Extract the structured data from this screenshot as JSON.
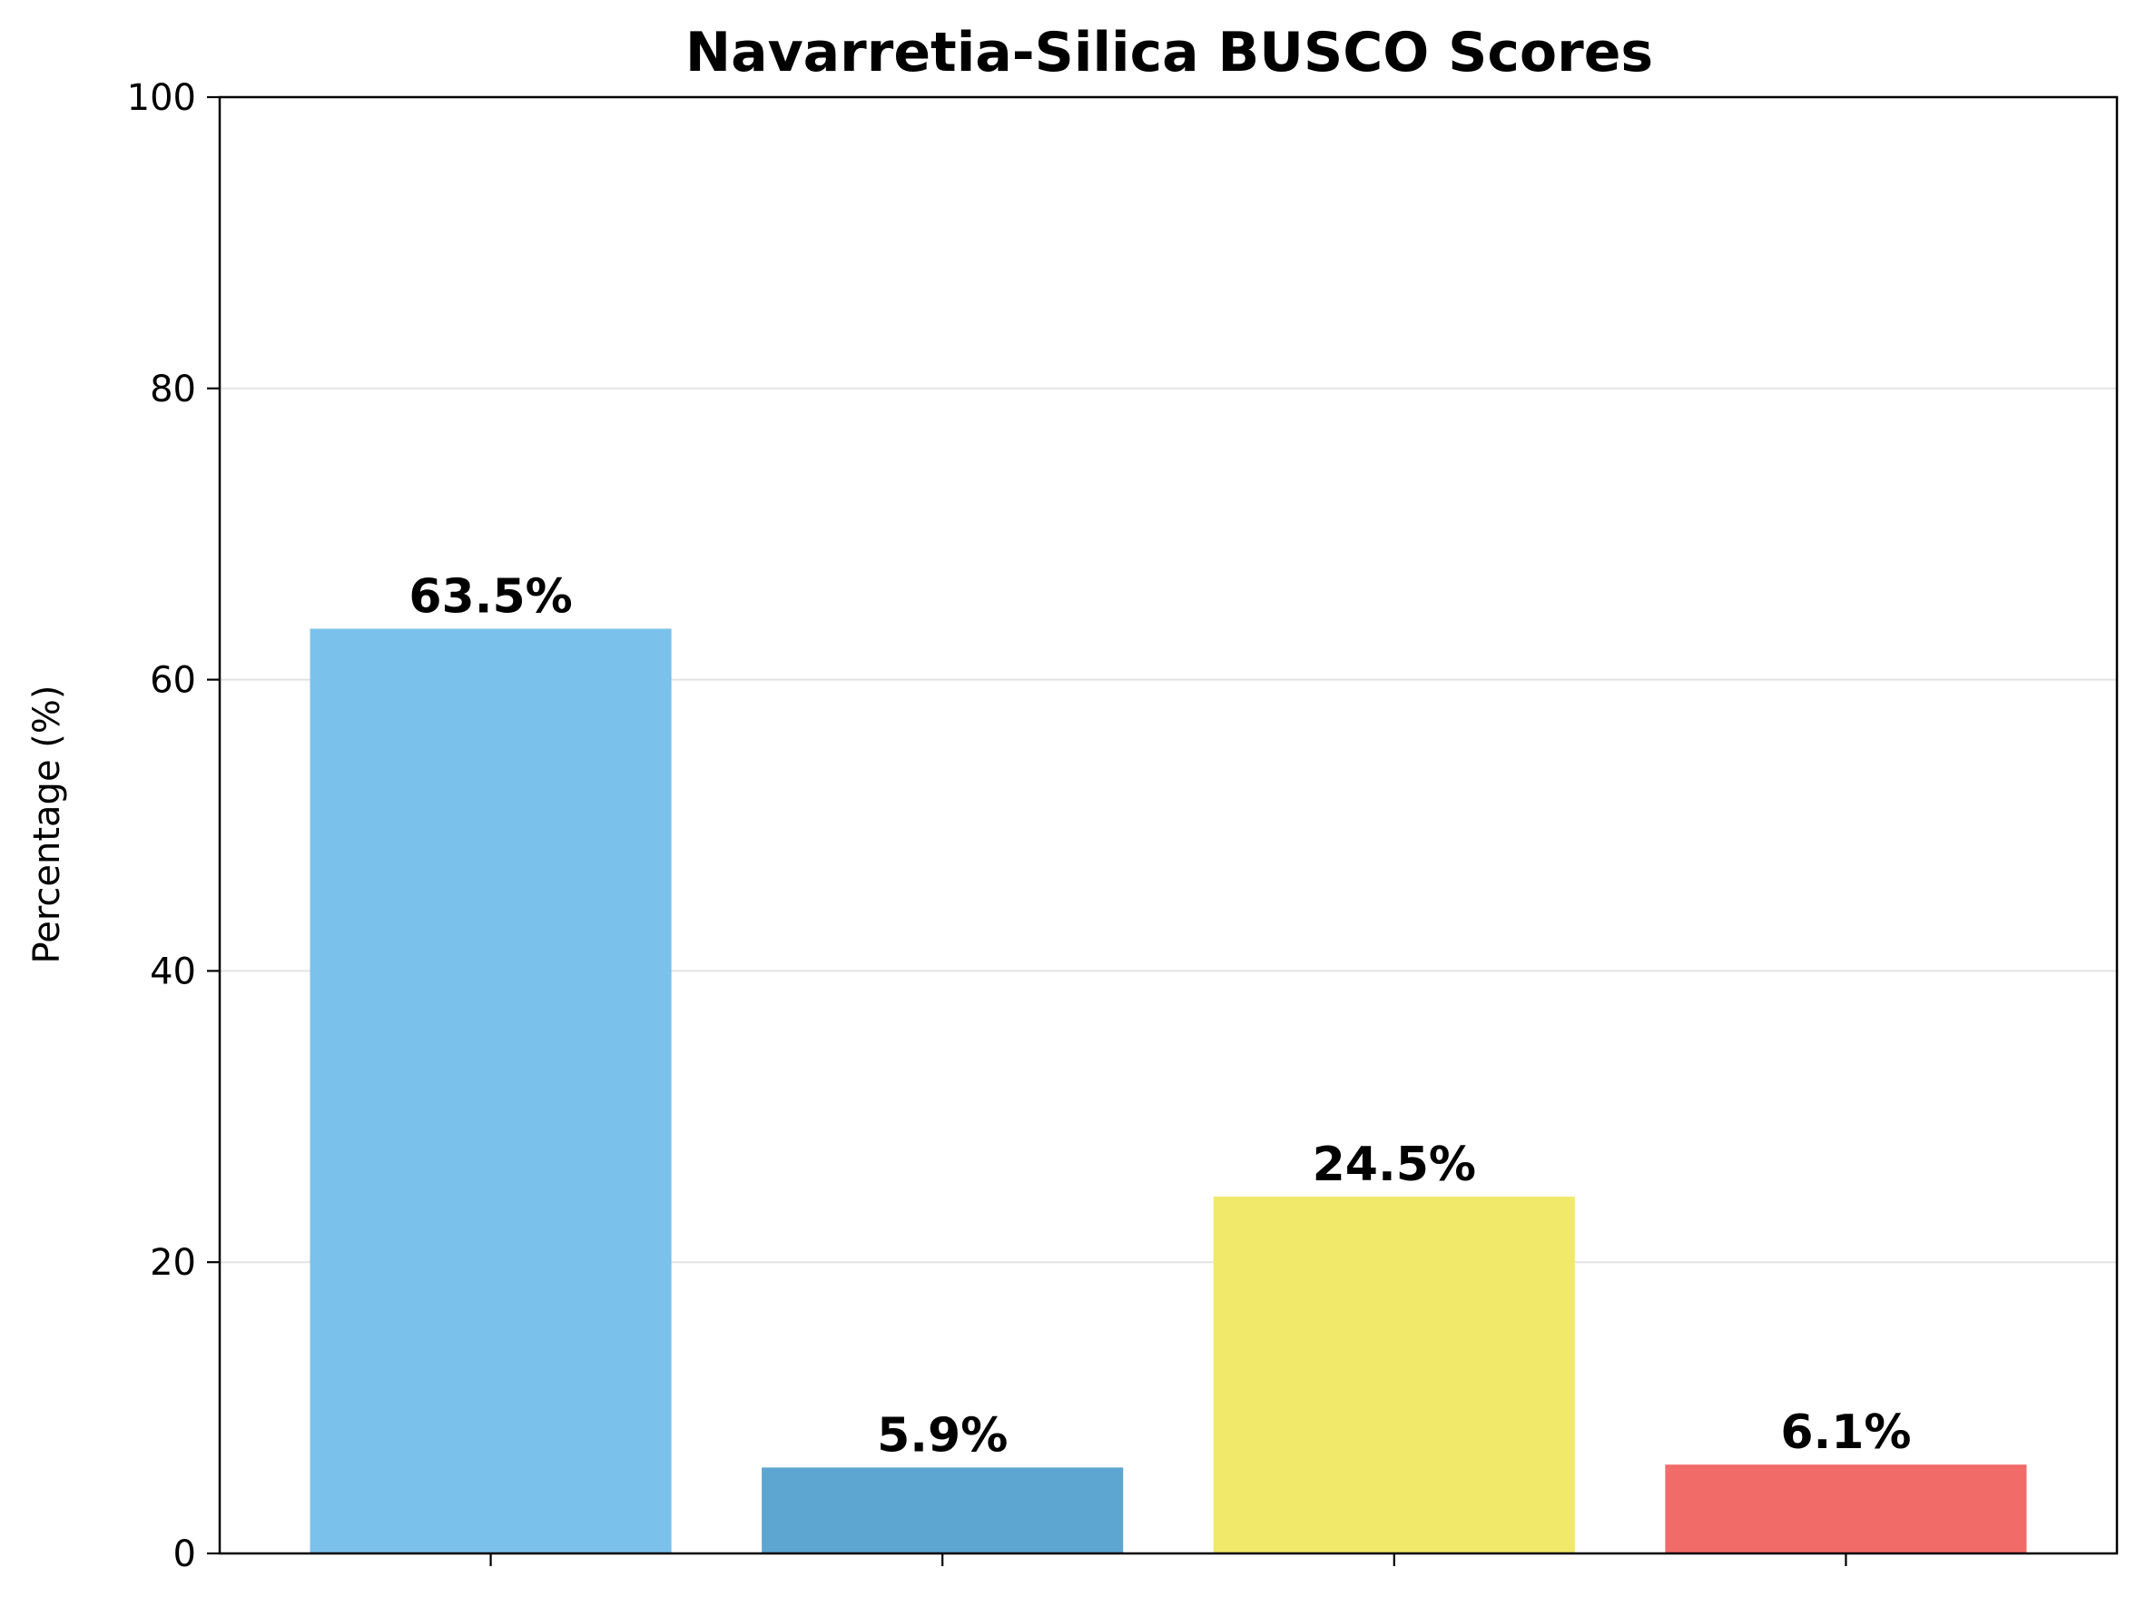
{
  "chart_data": {
    "type": "bar",
    "title": "Navarretia-Silica BUSCO Scores",
    "xlabel": "",
    "ylabel": "Percentage (%)",
    "categories": [
      "",
      "",
      "",
      ""
    ],
    "values": [
      63.5,
      5.9,
      24.5,
      6.1
    ],
    "value_labels": [
      "63.5%",
      "5.9%",
      "24.5%",
      "6.1%"
    ],
    "colors": [
      "#7ac1eb",
      "#5ca6d1",
      "#f1e96a",
      "#f16b69"
    ],
    "ylim": [
      0,
      100
    ],
    "yticks": [
      0,
      20,
      40,
      60,
      80,
      100
    ],
    "ytick_labels": [
      "0",
      "20",
      "40",
      "60",
      "80",
      "100"
    ],
    "grid": "y",
    "legend": "none"
  }
}
